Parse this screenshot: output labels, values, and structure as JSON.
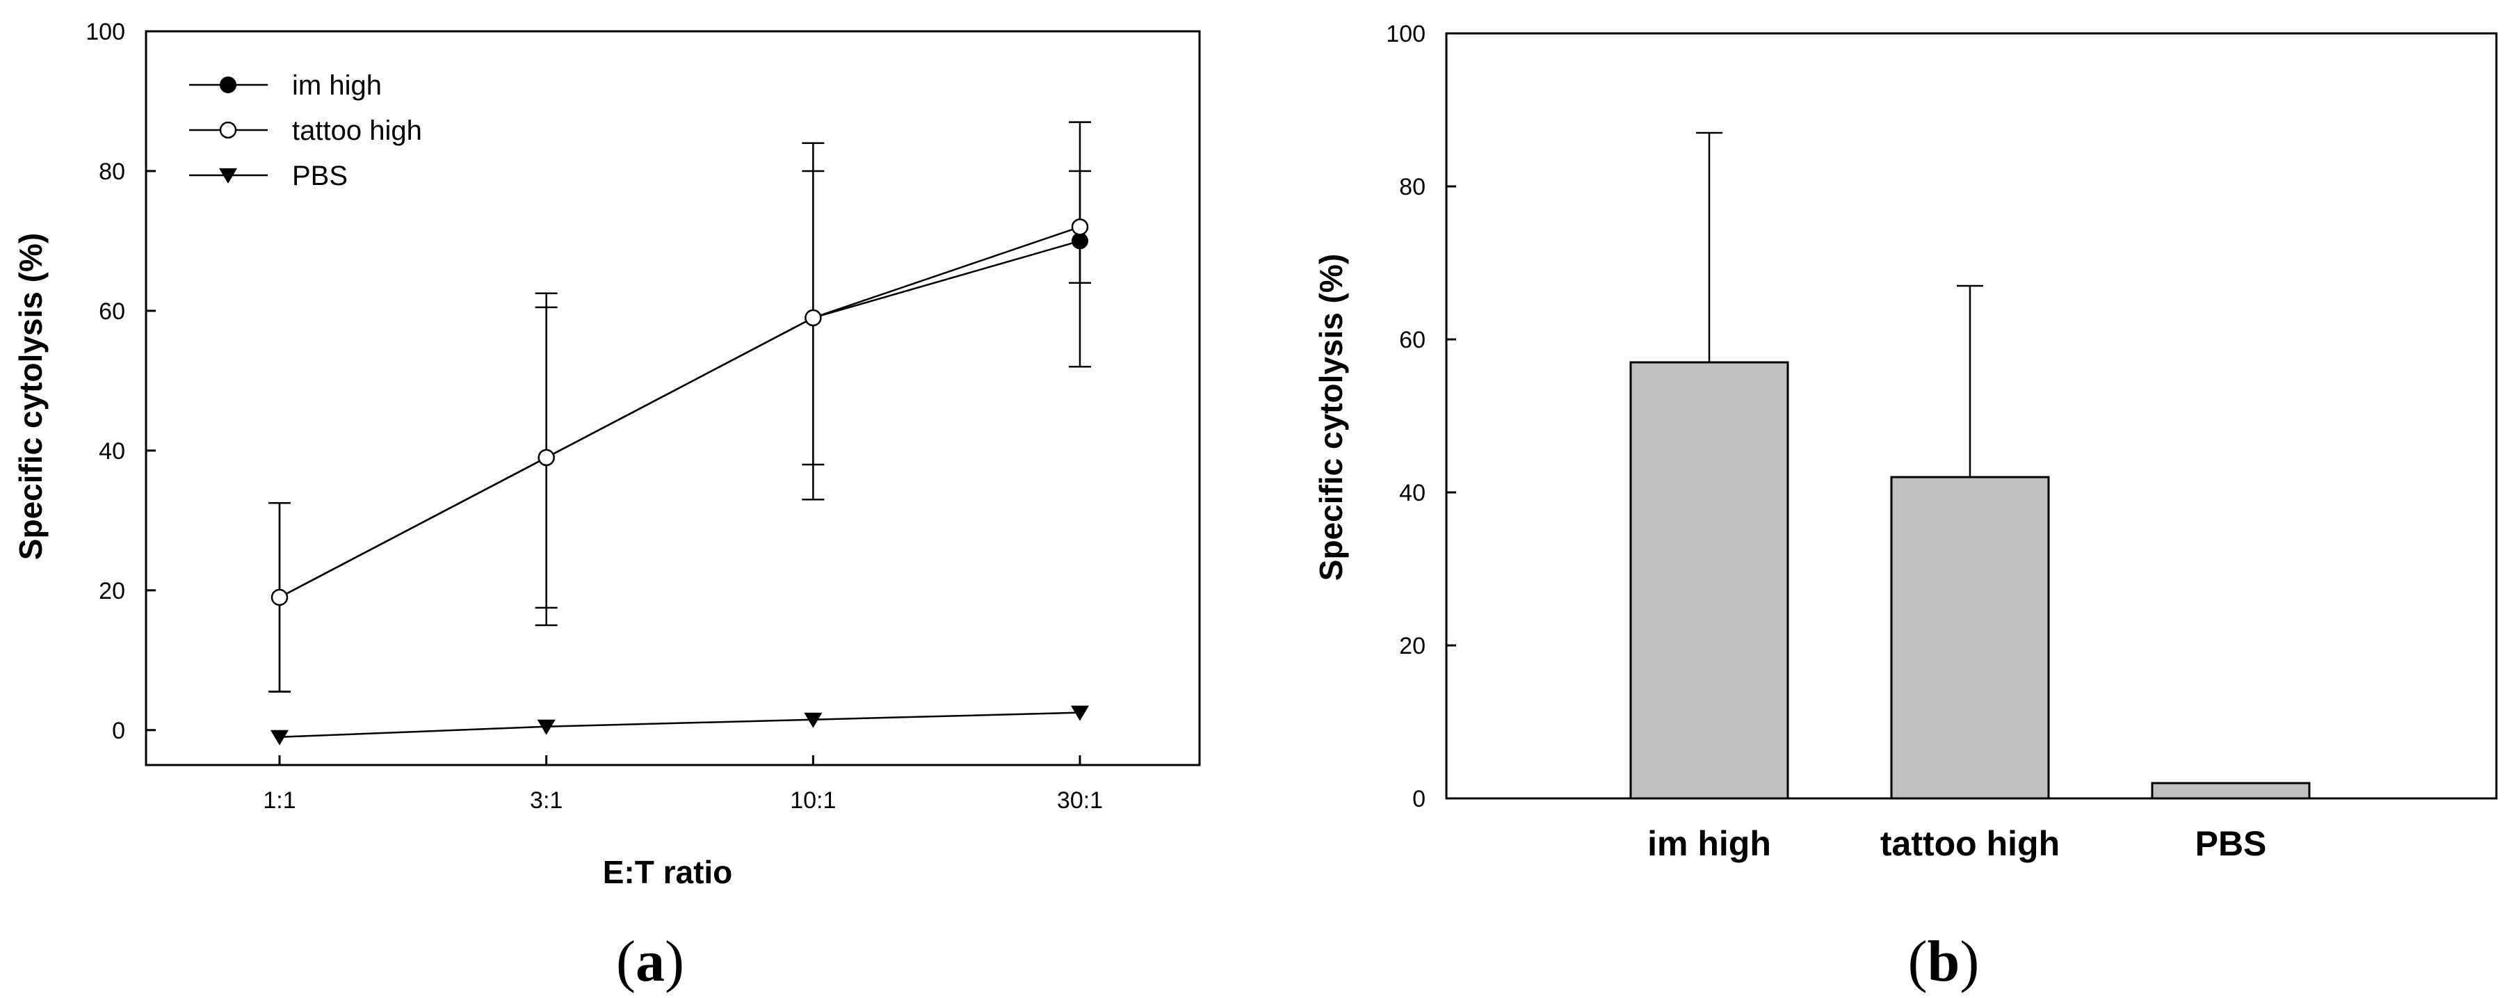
{
  "chart_data": [
    {
      "panel_label": {
        "open": "(",
        "letter": "a",
        "close": ")"
      },
      "type": "line",
      "xlabel": "E:T ratio",
      "ylabel": "Specific cytolysis (%)",
      "categories": [
        "1:1",
        "3:1",
        "10:1",
        "30:1"
      ],
      "ylim": [
        -5,
        100
      ],
      "yticks": [
        0,
        20,
        40,
        60,
        80,
        100
      ],
      "legend_position": "top-left",
      "grid": false,
      "series": [
        {
          "name": "im high",
          "marker": "filled-circle",
          "values": [
            19,
            39,
            59,
            70
          ],
          "err_low": [
            5.5,
            17.5,
            33,
            52
          ],
          "err_high": [
            32.5,
            62.5,
            84,
            87
          ]
        },
        {
          "name": "tattoo high",
          "marker": "open-circle",
          "values": [
            19,
            39,
            59,
            72
          ],
          "err_low": [
            5.5,
            15,
            38,
            64
          ],
          "err_high": [
            32.5,
            60.5,
            80,
            80
          ]
        },
        {
          "name": "PBS",
          "marker": "filled-triangle-down",
          "values": [
            -1,
            0.5,
            1.5,
            2.5
          ],
          "err_low": [
            -1,
            0.5,
            1.5,
            2.5
          ],
          "err_high": [
            -1,
            0.5,
            1.5,
            2.5
          ]
        }
      ]
    },
    {
      "panel_label": {
        "open": "(",
        "letter": "b",
        "close": ")"
      },
      "type": "bar",
      "xlabel": "",
      "ylabel": "Specific cytolysis (%)",
      "categories": [
        "im high",
        "tattoo high",
        "PBS"
      ],
      "values": [
        57,
        42,
        2
      ],
      "err_high": [
        87,
        67,
        2
      ],
      "ylim": [
        0,
        100
      ],
      "yticks": [
        0,
        20,
        40,
        60,
        80,
        100
      ],
      "bar_color": "#c0c0c0",
      "grid": false
    }
  ]
}
